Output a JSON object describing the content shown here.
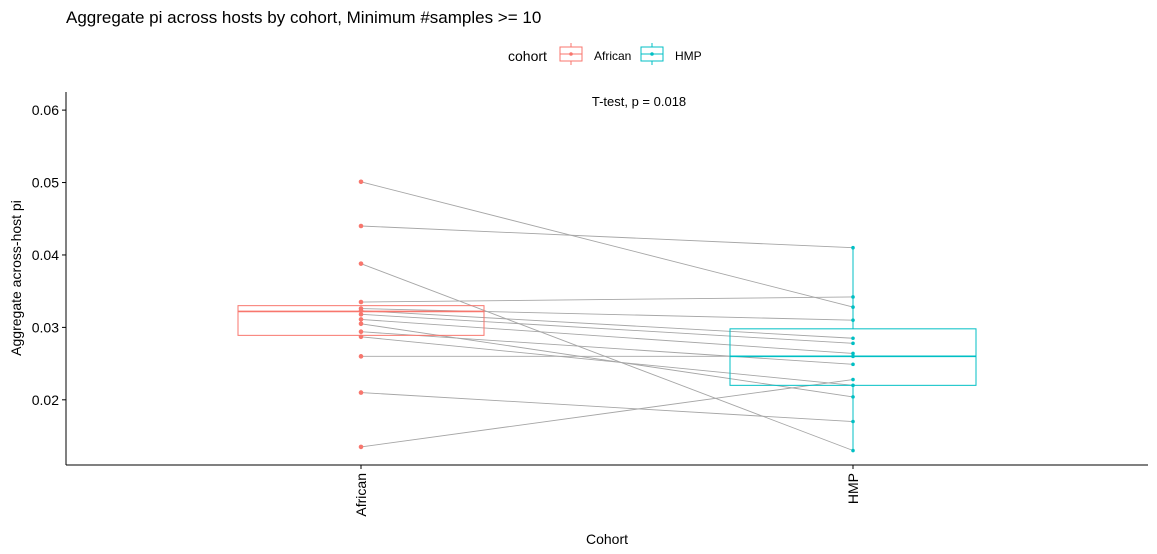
{
  "chart_data": {
    "type": "box-paired",
    "title": "Aggregate pi across hosts by cohort, Minimum #samples >= 10",
    "xlabel": "Cohort",
    "ylabel": "Aggregate across-host pi",
    "annotation": "T-test, p = 0.018",
    "legend": {
      "title": "cohort",
      "position": "top",
      "entries": [
        {
          "name": "African",
          "color": "#F8766D"
        },
        {
          "name": "HMP",
          "color": "#00BFC4"
        }
      ]
    },
    "categories": [
      "African",
      "HMP"
    ],
    "ylim": [
      0.011,
      0.0625
    ],
    "yticks": [
      0.02,
      0.03,
      0.04,
      0.05,
      0.06
    ],
    "ytick_labels": [
      "0.02",
      "0.03",
      "0.04",
      "0.05",
      "0.06"
    ],
    "grid": false,
    "boxes": [
      {
        "name": "African",
        "q1": 0.0289,
        "median": 0.0322,
        "q3": 0.033,
        "whisker_low": 0.0289,
        "whisker_high": 0.033,
        "color": "#F8766D"
      },
      {
        "name": "HMP",
        "q1": 0.022,
        "median": 0.026,
        "q3": 0.0298,
        "whisker_low": 0.013,
        "whisker_high": 0.041,
        "color": "#00BFC4"
      }
    ],
    "pairs": [
      {
        "African": 0.0501,
        "HMP": 0.0328
      },
      {
        "African": 0.044,
        "HMP": 0.041
      },
      {
        "African": 0.0388,
        "HMP": 0.013
      },
      {
        "African": 0.0335,
        "HMP": 0.0342
      },
      {
        "African": 0.0326,
        "HMP": 0.031
      },
      {
        "African": 0.0323,
        "HMP": 0.0285
      },
      {
        "African": 0.0318,
        "HMP": 0.0278
      },
      {
        "African": 0.0311,
        "HMP": 0.0264
      },
      {
        "African": 0.0305,
        "HMP": 0.0204
      },
      {
        "African": 0.0294,
        "HMP": 0.0249
      },
      {
        "African": 0.0287,
        "HMP": 0.022
      },
      {
        "African": 0.026,
        "HMP": 0.026
      },
      {
        "African": 0.021,
        "HMP": 0.017
      },
      {
        "African": 0.0135,
        "HMP": 0.0228
      }
    ]
  }
}
